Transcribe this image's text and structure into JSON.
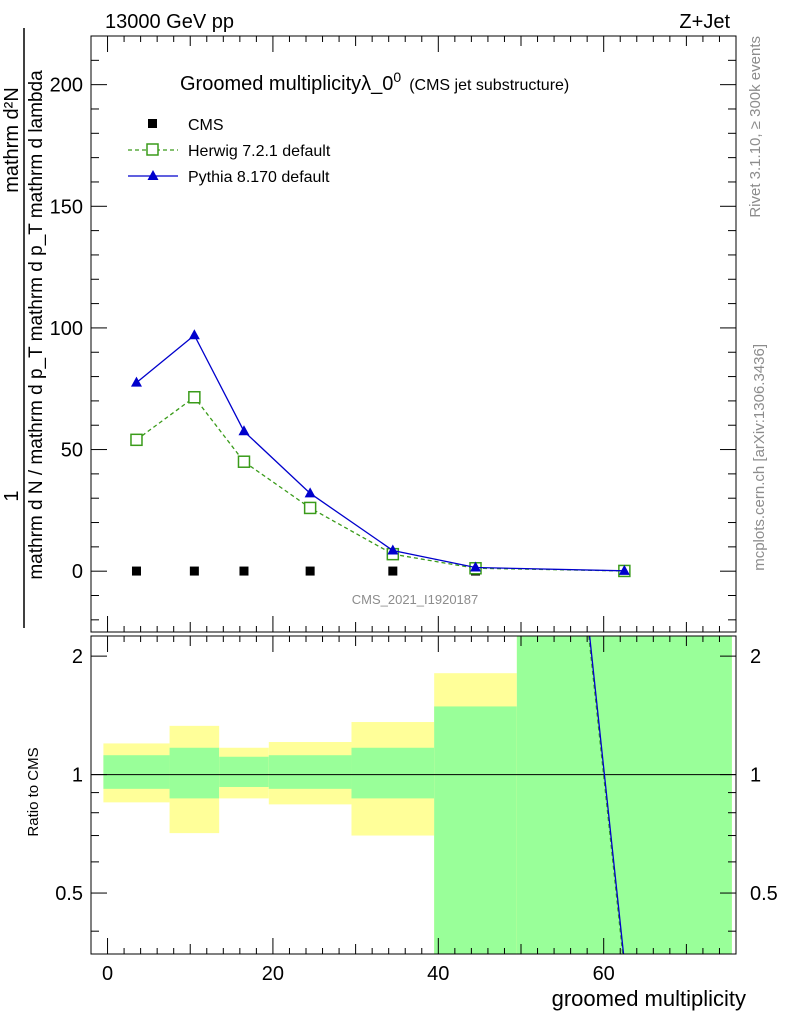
{
  "header": {
    "energy": "13000 GeV pp",
    "process": "Z+Jet"
  },
  "chart_data": {
    "type": "line",
    "title": "Groomed multiplicityλ_0",
    "title_superscript": "0",
    "subtitle": "(CMS jet substructure)",
    "ylabel_numerator": "mathrm d²N",
    "ylabel_denominator": "mathrm d N / mathrm d p_T mathrm d p_T mathrm d lambda",
    "ylabel_prefix": "1",
    "xlabel": "groomed multiplicity",
    "ratio_ylabel": "Ratio to CMS",
    "analysis_id": "CMS_2021_I1920187",
    "side_label_top": "Rivet 3.1.10, ≥ 300k events",
    "side_label_bottom": "mcplots.cern.ch [arXiv:1306.3436]",
    "xlim": [
      -2,
      76
    ],
    "ylim": [
      -25,
      220
    ],
    "ratio_ylim": [
      0.35,
      2.25
    ],
    "x_ticks": [
      0,
      20,
      40,
      60
    ],
    "y_ticks": [
      0,
      50,
      100,
      150,
      200
    ],
    "ratio_ticks": [
      0.5,
      1,
      2
    ],
    "x_tick_labels": [
      "0",
      "20",
      "40",
      "60"
    ],
    "y_tick_labels": [
      "0",
      "50",
      "100",
      "150",
      "200"
    ],
    "ratio_tick_labels": [
      "0.5",
      "1",
      "2"
    ],
    "x": [
      3.5,
      10.5,
      16.5,
      24.5,
      34.5,
      44.5,
      62.5
    ],
    "series": [
      {
        "name": "CMS",
        "values": [
          0.05,
          0.05,
          0.05,
          0.05,
          0.05,
          0.05,
          0.02
        ],
        "color": "#000000",
        "marker": "square"
      },
      {
        "name": "Herwig 7.2.1 default",
        "values": [
          54,
          71.5,
          45,
          26,
          7,
          1.2,
          0.1
        ],
        "color": "#3a9b1a",
        "marker": "open-square",
        "dashed": true
      },
      {
        "name": "Pythia 8.170 default",
        "values": [
          77.5,
          97,
          57.5,
          32,
          8.5,
          1.5,
          0.15
        ],
        "color": "#0000cc",
        "marker": "triangle"
      }
    ],
    "ratio_bands": [
      {
        "x_low": -0.5,
        "x_high": 7.5,
        "green_low": 0.92,
        "green_high": 1.12,
        "yellow_low": 0.85,
        "yellow_high": 1.2
      },
      {
        "x_low": 7.5,
        "x_high": 13.5,
        "green_low": 0.87,
        "green_high": 1.17,
        "yellow_low": 0.71,
        "yellow_high": 1.33
      },
      {
        "x_low": 13.5,
        "x_high": 19.5,
        "green_low": 0.93,
        "green_high": 1.11,
        "yellow_low": 0.87,
        "yellow_high": 1.17
      },
      {
        "x_low": 19.5,
        "x_high": 29.5,
        "green_low": 0.92,
        "green_high": 1.12,
        "yellow_low": 0.84,
        "yellow_high": 1.21
      },
      {
        "x_low": 29.5,
        "x_high": 39.5,
        "green_low": 0.87,
        "green_high": 1.17,
        "yellow_low": 0.7,
        "yellow_high": 1.36
      },
      {
        "x_low": 39.5,
        "x_high": 49.5,
        "green_low": 0.35,
        "green_high": 1.49,
        "yellow_low": 0.35,
        "yellow_high": 1.81
      },
      {
        "x_low": 49.5,
        "x_high": 75.5,
        "green_low": 0.35,
        "green_high": 2.25,
        "yellow_low": 0.35,
        "yellow_high": 2.25
      }
    ],
    "ratio_lines": [
      {
        "name": "Herwig 7.2.1 default",
        "x": [
          58.2,
          62.3
        ],
        "values": [
          2.25,
          0.35
        ],
        "color": "#3a9b1a",
        "dashed": true
      },
      {
        "name": "Pythia 8.170 default",
        "x": [
          58.3,
          62.4
        ],
        "values": [
          2.25,
          0.35
        ],
        "color": "#0000cc",
        "dashed": false
      }
    ]
  }
}
